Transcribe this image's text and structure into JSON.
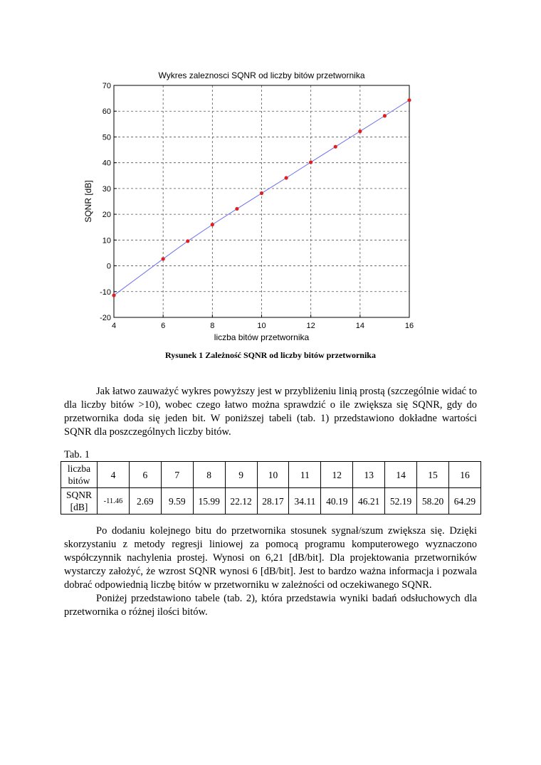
{
  "chart_data": {
    "type": "line",
    "title": "Wykres zaleznosci SQNR od liczby bitów przetwornika",
    "xlabel": "liczba bitów przetwornika",
    "ylabel": "SQNR [dB]",
    "xlim": [
      4,
      16
    ],
    "ylim": [
      -20,
      70
    ],
    "xticks": [
      "4",
      "6",
      "8",
      "10",
      "12",
      "14",
      "16"
    ],
    "yticks": [
      "-20",
      "-10",
      "0",
      "10",
      "20",
      "30",
      "40",
      "50",
      "60",
      "70"
    ],
    "grid": true,
    "series": [
      {
        "x": [
          4,
          6,
          7,
          8,
          9,
          10,
          11,
          12,
          13,
          14,
          15,
          16
        ],
        "y": [
          -11.46,
          2.69,
          9.59,
          15.99,
          22.12,
          28.17,
          34.11,
          40.19,
          46.21,
          52.19,
          58.2,
          64.29
        ],
        "line_color": "#6f6ff0",
        "marker_color": "#e02020"
      }
    ]
  },
  "caption": "Rysunek 1 Zależność SQNR od liczby bitów przetwornika",
  "paragraph1": "Jak łatwo zauważyć wykres powyższy jest w przybliżeniu linią prostą (szczególnie widać to dla liczby bitów >10), wobec czego łatwo można sprawdzić o ile zwiększa się SQNR, gdy do przetwornika doda się jeden bit. W poniższej tabeli (tab. 1) przedstawiono dokładne wartości SQNR dla poszczególnych liczby bitów.",
  "table": {
    "label": "Tab. 1",
    "row1_header": "liczba bitów",
    "row2_header": "SQNR [dB]",
    "bits": [
      "4",
      "6",
      "7",
      "8",
      "9",
      "10",
      "11",
      "12",
      "13",
      "14",
      "15",
      "16"
    ],
    "sqnr": [
      "-11.46",
      "2.69",
      "9.59",
      "15.99",
      "22.12",
      "28.17",
      "34.11",
      "40.19",
      "46.21",
      "52.19",
      "58.20",
      "64.29"
    ]
  },
  "paragraph2": "Po dodaniu kolejnego bitu do przetwornika stosunek sygnał/szum zwiększa się. Dzięki skorzystaniu z metody regresji liniowej za pomocą programu komputerowego wyznaczono współczynnik nachylenia prostej. Wynosi on 6,21 [dB/bit]. Dla projektowania przetworników wystarczy założyć, że wzrost SQNR wynosi 6 [dB/bit]. Jest to bardzo ważna informacja i pozwala dobrać odpowiednią liczbę bitów w przetworniku w zależności od oczekiwanego SQNR.",
  "paragraph3": "Poniżej przedstawiono tabele (tab. 2), która przedstawia wyniki badań odsłuchowych dla przetwornika o różnej ilości bitów."
}
